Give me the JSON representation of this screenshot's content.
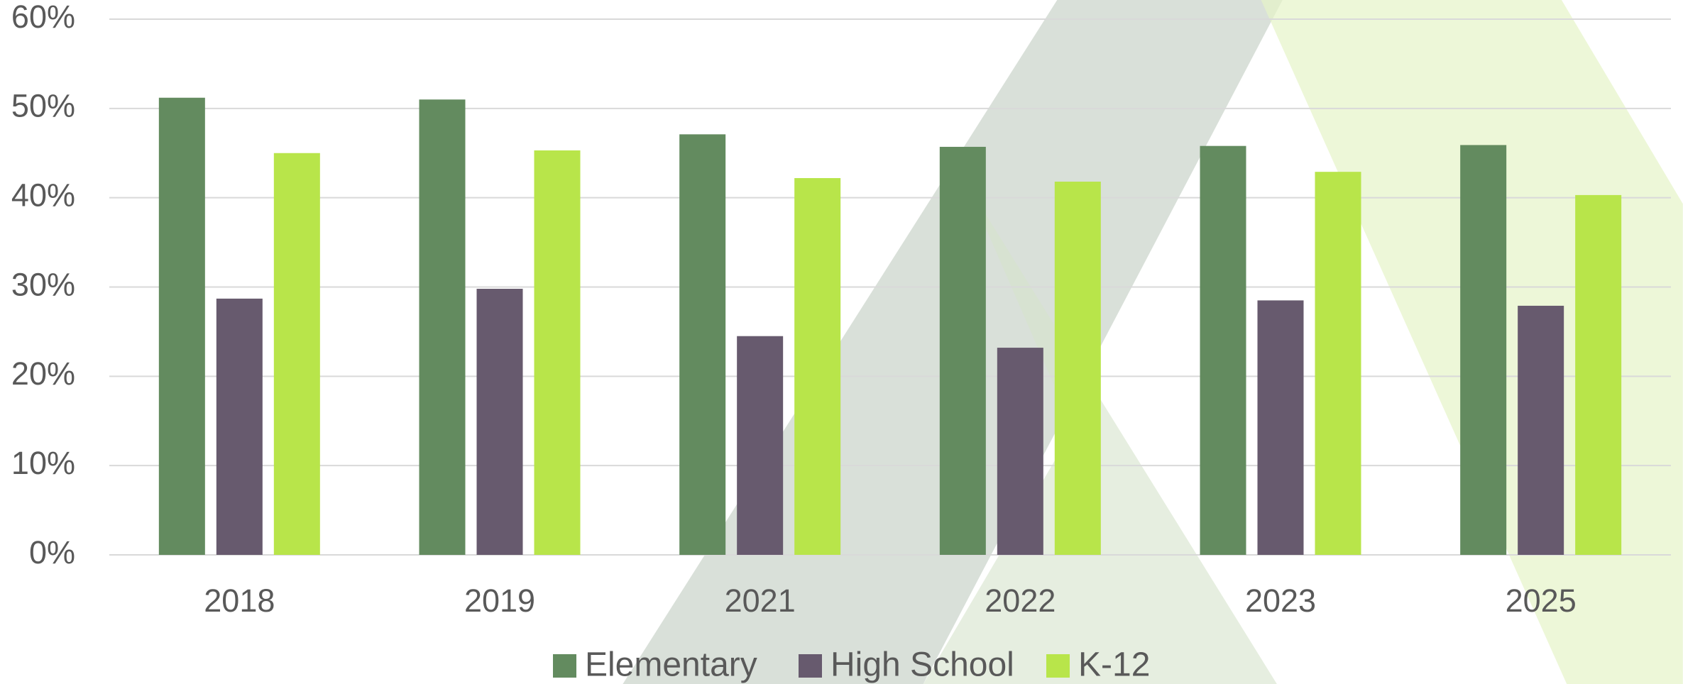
{
  "chart_data": {
    "type": "bar",
    "categories": [
      "2018",
      "2019",
      "2021",
      "2022",
      "2023",
      "2025"
    ],
    "series": [
      {
        "name": "Elementary",
        "color": "#638b5f",
        "values": [
          51.2,
          51.0,
          47.1,
          45.7,
          45.8,
          45.9
        ]
      },
      {
        "name": "High School",
        "color": "#675a6e",
        "values": [
          28.7,
          29.8,
          24.5,
          23.2,
          28.5,
          27.9
        ]
      },
      {
        "name": "K-12",
        "color": "#b8e54a",
        "values": [
          45.0,
          45.3,
          42.2,
          41.8,
          42.9,
          40.3
        ]
      }
    ],
    "ylim": [
      0,
      60
    ],
    "yticks": [
      {
        "value": 0,
        "label": "0%"
      },
      {
        "value": 10,
        "label": "10%"
      },
      {
        "value": 20,
        "label": "20%"
      },
      {
        "value": 30,
        "label": "30%"
      },
      {
        "value": 40,
        "label": "40%"
      },
      {
        "value": 50,
        "label": "50%"
      },
      {
        "value": 60,
        "label": "60%"
      }
    ],
    "grid": true,
    "legend": "bottom"
  }
}
